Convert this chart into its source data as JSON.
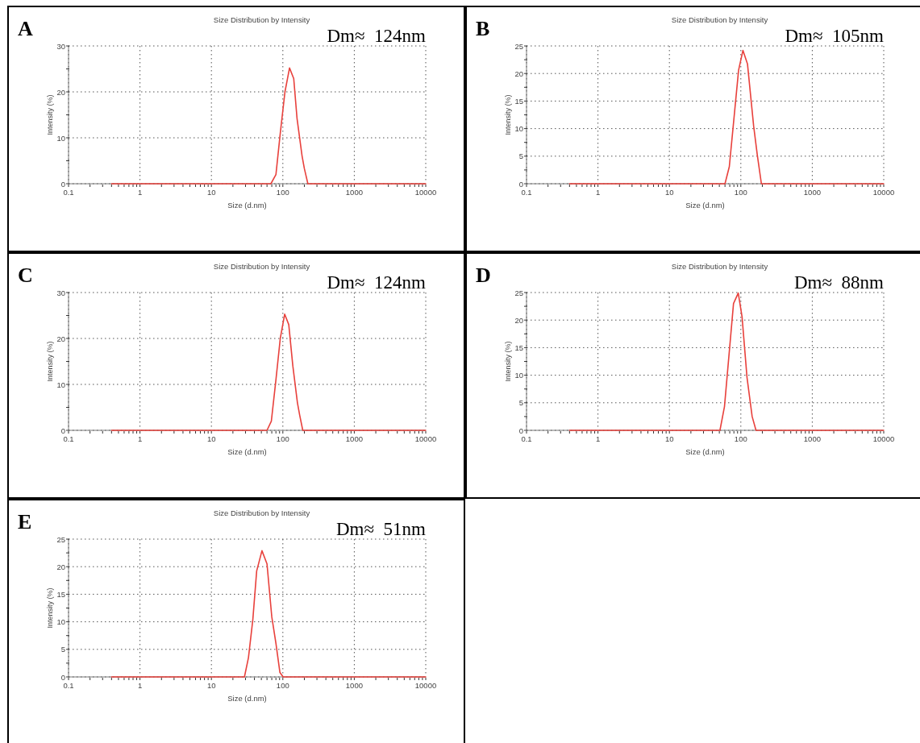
{
  "chart_data": [
    {
      "type": "line",
      "title": "Size Distribution by Intensity",
      "xlabel": "Size (d.nm)",
      "ylabel": "Intensity (%)",
      "annotations": [
        "A",
        "Dm≈  124nm"
      ],
      "log": "x",
      "grid": true,
      "xlim": [
        0.1,
        10000
      ],
      "ylim": [
        0,
        30
      ],
      "xticks": [
        0.1,
        {
          "value": 0.2,
          "label": null
        },
        {
          "value": 0.3,
          "label": null
        },
        {
          "value": 0.4,
          "label": null
        },
        {
          "value": 0.5,
          "label": null
        },
        {
          "value": 0.6,
          "label": null
        },
        {
          "value": 0.7,
          "label": null
        },
        {
          "value": 0.8,
          "label": null
        },
        {
          "value": 0.9,
          "label": null
        },
        1,
        {
          "value": 2,
          "label": null
        },
        {
          "value": 3,
          "label": null
        },
        {
          "value": 4,
          "label": null
        },
        {
          "value": 5,
          "label": null
        },
        {
          "value": 6,
          "label": null
        },
        {
          "value": 7,
          "label": null
        },
        {
          "value": 8,
          "label": null
        },
        {
          "value": 9,
          "label": null
        },
        10,
        {
          "value": 20,
          "label": null
        },
        {
          "value": 30,
          "label": null
        },
        {
          "value": 40,
          "label": null
        },
        {
          "value": 50,
          "label": null
        },
        {
          "value": 60,
          "label": null
        },
        {
          "value": 70,
          "label": null
        },
        {
          "value": 80,
          "label": null
        },
        {
          "value": 90,
          "label": null
        },
        100,
        {
          "value": 200,
          "label": null
        },
        {
          "value": 300,
          "label": null
        },
        {
          "value": 400,
          "label": null
        },
        {
          "value": 500,
          "label": null
        },
        {
          "value": 600,
          "label": null
        },
        {
          "value": 700,
          "label": null
        },
        {
          "value": 800,
          "label": null
        },
        {
          "value": 900,
          "label": null
        },
        1000,
        {
          "value": 2000,
          "label": null
        },
        {
          "value": 3000,
          "label": null
        },
        {
          "value": 4000,
          "label": null
        },
        {
          "value": 5000,
          "label": null
        },
        {
          "value": 6000,
          "label": null
        },
        {
          "value": 7000,
          "label": null
        },
        {
          "value": 8000,
          "label": null
        },
        {
          "value": 9000,
          "label": null
        },
        10000
      ],
      "yticks": [
        0,
        {
          "value": 5,
          "label": null
        },
        10,
        {
          "value": 15,
          "label": null
        },
        20,
        {
          "value": 25,
          "label": null
        },
        30
      ],
      "series": [
        {
          "color": "#e8413c",
          "x": [
            0.4,
            68,
            80,
            92,
            107,
            124,
            142,
            158,
            186,
            200,
            224,
            10000
          ],
          "values": [
            0,
            0,
            2,
            11,
            20,
            25.2,
            22.9,
            14.2,
            6,
            3.3,
            0,
            0
          ]
        }
      ]
    },
    {
      "type": "line",
      "title": "Size Distribution by Intensity",
      "xlabel": "Size (d.nm)",
      "ylabel": "Intensity (%)",
      "annotations": [
        "B",
        "Dm≈  105nm"
      ],
      "log": "x",
      "grid": true,
      "xlim": [
        0.1,
        10000
      ],
      "ylim": [
        0,
        25
      ],
      "xticks": [
        0.1,
        {
          "value": 0.2,
          "label": null
        },
        {
          "value": 0.3,
          "label": null
        },
        {
          "value": 0.4,
          "label": null
        },
        {
          "value": 0.5,
          "label": null
        },
        {
          "value": 0.6,
          "label": null
        },
        {
          "value": 0.7,
          "label": null
        },
        {
          "value": 0.8,
          "label": null
        },
        {
          "value": 0.9,
          "label": null
        },
        1,
        {
          "value": 2,
          "label": null
        },
        {
          "value": 3,
          "label": null
        },
        {
          "value": 4,
          "label": null
        },
        {
          "value": 5,
          "label": null
        },
        {
          "value": 6,
          "label": null
        },
        {
          "value": 7,
          "label": null
        },
        {
          "value": 8,
          "label": null
        },
        {
          "value": 9,
          "label": null
        },
        10,
        {
          "value": 20,
          "label": null
        },
        {
          "value": 30,
          "label": null
        },
        {
          "value": 40,
          "label": null
        },
        {
          "value": 50,
          "label": null
        },
        {
          "value": 60,
          "label": null
        },
        {
          "value": 70,
          "label": null
        },
        {
          "value": 80,
          "label": null
        },
        {
          "value": 90,
          "label": null
        },
        100,
        {
          "value": 200,
          "label": null
        },
        {
          "value": 300,
          "label": null
        },
        {
          "value": 400,
          "label": null
        },
        {
          "value": 500,
          "label": null
        },
        {
          "value": 600,
          "label": null
        },
        {
          "value": 700,
          "label": null
        },
        {
          "value": 800,
          "label": null
        },
        {
          "value": 900,
          "label": null
        },
        1000,
        {
          "value": 2000,
          "label": null
        },
        {
          "value": 3000,
          "label": null
        },
        {
          "value": 4000,
          "label": null
        },
        {
          "value": 5000,
          "label": null
        },
        {
          "value": 6000,
          "label": null
        },
        {
          "value": 7000,
          "label": null
        },
        {
          "value": 8000,
          "label": null
        },
        {
          "value": 9000,
          "label": null
        },
        10000
      ],
      "yticks": [
        0,
        {
          "value": 2.5,
          "label": null
        },
        5,
        {
          "value": 7.5,
          "label": null
        },
        10,
        {
          "value": 12.5,
          "label": null
        },
        15,
        {
          "value": 17.5,
          "label": null
        },
        20,
        {
          "value": 22.5,
          "label": null
        },
        25
      ],
      "series": [
        {
          "color": "#e8413c",
          "x": [
            0.4,
            60,
            69,
            93,
            107,
            124,
            151,
            170,
            194,
            10000
          ],
          "values": [
            0,
            0,
            3.1,
            20.6,
            24.2,
            21.7,
            10.5,
            5.2,
            0,
            0
          ]
        }
      ]
    },
    {
      "type": "line",
      "title": "Size Distribution by Intensity",
      "xlabel": "Size (d.nm)",
      "ylabel": "Intensity (%)",
      "annotations": [
        "C",
        "Dm≈  124nm"
      ],
      "log": "x",
      "grid": true,
      "xlim": [
        0.1,
        10000
      ],
      "ylim": [
        0,
        30
      ],
      "xticks": [
        0.1,
        {
          "value": 0.2,
          "label": null
        },
        {
          "value": 0.3,
          "label": null
        },
        {
          "value": 0.4,
          "label": null
        },
        {
          "value": 0.5,
          "label": null
        },
        {
          "value": 0.6,
          "label": null
        },
        {
          "value": 0.7,
          "label": null
        },
        {
          "value": 0.8,
          "label": null
        },
        {
          "value": 0.9,
          "label": null
        },
        1,
        {
          "value": 2,
          "label": null
        },
        {
          "value": 3,
          "label": null
        },
        {
          "value": 4,
          "label": null
        },
        {
          "value": 5,
          "label": null
        },
        {
          "value": 6,
          "label": null
        },
        {
          "value": 7,
          "label": null
        },
        {
          "value": 8,
          "label": null
        },
        {
          "value": 9,
          "label": null
        },
        10,
        {
          "value": 20,
          "label": null
        },
        {
          "value": 30,
          "label": null
        },
        {
          "value": 40,
          "label": null
        },
        {
          "value": 50,
          "label": null
        },
        {
          "value": 60,
          "label": null
        },
        {
          "value": 70,
          "label": null
        },
        {
          "value": 80,
          "label": null
        },
        {
          "value": 90,
          "label": null
        },
        100,
        {
          "value": 200,
          "label": null
        },
        {
          "value": 300,
          "label": null
        },
        {
          "value": 400,
          "label": null
        },
        {
          "value": 500,
          "label": null
        },
        {
          "value": 600,
          "label": null
        },
        {
          "value": 700,
          "label": null
        },
        {
          "value": 800,
          "label": null
        },
        {
          "value": 900,
          "label": null
        },
        1000,
        {
          "value": 2000,
          "label": null
        },
        {
          "value": 3000,
          "label": null
        },
        {
          "value": 4000,
          "label": null
        },
        {
          "value": 5000,
          "label": null
        },
        {
          "value": 6000,
          "label": null
        },
        {
          "value": 7000,
          "label": null
        },
        {
          "value": 8000,
          "label": null
        },
        {
          "value": 9000,
          "label": null
        },
        10000
      ],
      "yticks": [
        0,
        {
          "value": 5,
          "label": null
        },
        10,
        {
          "value": 15,
          "label": null
        },
        20,
        {
          "value": 25,
          "label": null
        },
        30
      ],
      "series": [
        {
          "color": "#e8413c",
          "x": [
            0.4,
            60,
            69,
            80,
            92,
            106,
            121,
            138,
            160,
            172,
            190,
            10000
          ],
          "values": [
            0,
            0,
            2,
            11,
            20,
            25.3,
            23,
            14,
            6,
            3.3,
            0,
            0
          ]
        }
      ]
    },
    {
      "type": "line",
      "title": "Size Distribution by Intensity",
      "xlabel": "Size (d.nm)",
      "ylabel": "Intensity (%)",
      "annotations": [
        "D",
        "Dm≈  88nm"
      ],
      "log": "x",
      "grid": true,
      "xlim": [
        0.1,
        10000
      ],
      "ylim": [
        0,
        25
      ],
      "xticks": [
        0.1,
        {
          "value": 0.2,
          "label": null
        },
        {
          "value": 0.3,
          "label": null
        },
        {
          "value": 0.4,
          "label": null
        },
        {
          "value": 0.5,
          "label": null
        },
        {
          "value": 0.6,
          "label": null
        },
        {
          "value": 0.7,
          "label": null
        },
        {
          "value": 0.8,
          "label": null
        },
        {
          "value": 0.9,
          "label": null
        },
        1,
        {
          "value": 2,
          "label": null
        },
        {
          "value": 3,
          "label": null
        },
        {
          "value": 4,
          "label": null
        },
        {
          "value": 5,
          "label": null
        },
        {
          "value": 6,
          "label": null
        },
        {
          "value": 7,
          "label": null
        },
        {
          "value": 8,
          "label": null
        },
        {
          "value": 9,
          "label": null
        },
        10,
        {
          "value": 20,
          "label": null
        },
        {
          "value": 30,
          "label": null
        },
        {
          "value": 40,
          "label": null
        },
        {
          "value": 50,
          "label": null
        },
        {
          "value": 60,
          "label": null
        },
        {
          "value": 70,
          "label": null
        },
        {
          "value": 80,
          "label": null
        },
        {
          "value": 90,
          "label": null
        },
        100,
        {
          "value": 200,
          "label": null
        },
        {
          "value": 300,
          "label": null
        },
        {
          "value": 400,
          "label": null
        },
        {
          "value": 500,
          "label": null
        },
        {
          "value": 600,
          "label": null
        },
        {
          "value": 700,
          "label": null
        },
        {
          "value": 800,
          "label": null
        },
        {
          "value": 900,
          "label": null
        },
        1000,
        {
          "value": 2000,
          "label": null
        },
        {
          "value": 3000,
          "label": null
        },
        {
          "value": 4000,
          "label": null
        },
        {
          "value": 5000,
          "label": null
        },
        {
          "value": 6000,
          "label": null
        },
        {
          "value": 7000,
          "label": null
        },
        {
          "value": 8000,
          "label": null
        },
        {
          "value": 9000,
          "label": null
        },
        10000
      ],
      "yticks": [
        0,
        {
          "value": 2.5,
          "label": null
        },
        5,
        {
          "value": 7.5,
          "label": null
        },
        10,
        {
          "value": 12.5,
          "label": null
        },
        15,
        {
          "value": 17.5,
          "label": null
        },
        20,
        {
          "value": 22.5,
          "label": null
        },
        25
      ],
      "series": [
        {
          "color": "#e8413c",
          "x": [
            0.4,
            51,
            59,
            79,
            92,
            104,
            122,
            144,
            163,
            10000
          ],
          "values": [
            0,
            0,
            4.3,
            23,
            24.9,
            20.6,
            9.6,
            2.5,
            0,
            0
          ]
        }
      ]
    },
    {
      "type": "line",
      "title": "Size Distribution by Intensity",
      "xlabel": "Size (d.nm)",
      "ylabel": "Intensity (%)",
      "annotations": [
        "E",
        "Dm≈  51nm"
      ],
      "log": "x",
      "grid": true,
      "xlim": [
        0.1,
        10000
      ],
      "ylim": [
        0,
        25
      ],
      "xticks": [
        0.1,
        {
          "value": 0.2,
          "label": null
        },
        {
          "value": 0.3,
          "label": null
        },
        {
          "value": 0.4,
          "label": null
        },
        {
          "value": 0.5,
          "label": null
        },
        {
          "value": 0.6,
          "label": null
        },
        {
          "value": 0.7,
          "label": null
        },
        {
          "value": 0.8,
          "label": null
        },
        {
          "value": 0.9,
          "label": null
        },
        1,
        {
          "value": 2,
          "label": null
        },
        {
          "value": 3,
          "label": null
        },
        {
          "value": 4,
          "label": null
        },
        {
          "value": 5,
          "label": null
        },
        {
          "value": 6,
          "label": null
        },
        {
          "value": 7,
          "label": null
        },
        {
          "value": 8,
          "label": null
        },
        {
          "value": 9,
          "label": null
        },
        10,
        {
          "value": 20,
          "label": null
        },
        {
          "value": 30,
          "label": null
        },
        {
          "value": 40,
          "label": null
        },
        {
          "value": 50,
          "label": null
        },
        {
          "value": 60,
          "label": null
        },
        {
          "value": 70,
          "label": null
        },
        {
          "value": 80,
          "label": null
        },
        {
          "value": 90,
          "label": null
        },
        100,
        {
          "value": 200,
          "label": null
        },
        {
          "value": 300,
          "label": null
        },
        {
          "value": 400,
          "label": null
        },
        {
          "value": 500,
          "label": null
        },
        {
          "value": 600,
          "label": null
        },
        {
          "value": 700,
          "label": null
        },
        {
          "value": 800,
          "label": null
        },
        {
          "value": 900,
          "label": null
        },
        1000,
        {
          "value": 2000,
          "label": null
        },
        {
          "value": 3000,
          "label": null
        },
        {
          "value": 4000,
          "label": null
        },
        {
          "value": 5000,
          "label": null
        },
        {
          "value": 6000,
          "label": null
        },
        {
          "value": 7000,
          "label": null
        },
        {
          "value": 8000,
          "label": null
        },
        {
          "value": 9000,
          "label": null
        },
        10000
      ],
      "yticks": [
        0,
        {
          "value": 2.5,
          "label": null
        },
        5,
        {
          "value": 7.5,
          "label": null
        },
        10,
        {
          "value": 12.5,
          "label": null
        },
        15,
        {
          "value": 17.5,
          "label": null
        },
        20,
        {
          "value": 22.5,
          "label": null
        },
        25
      ],
      "series": [
        {
          "color": "#e8413c",
          "x": [
            0.4,
            29,
            33,
            38,
            43,
            51,
            60,
            70,
            80,
            91,
            101,
            10000
          ],
          "values": [
            0,
            0,
            3.5,
            10.4,
            19.2,
            22.9,
            20.5,
            10.9,
            6.1,
            0.8,
            0,
            0
          ]
        }
      ]
    }
  ]
}
